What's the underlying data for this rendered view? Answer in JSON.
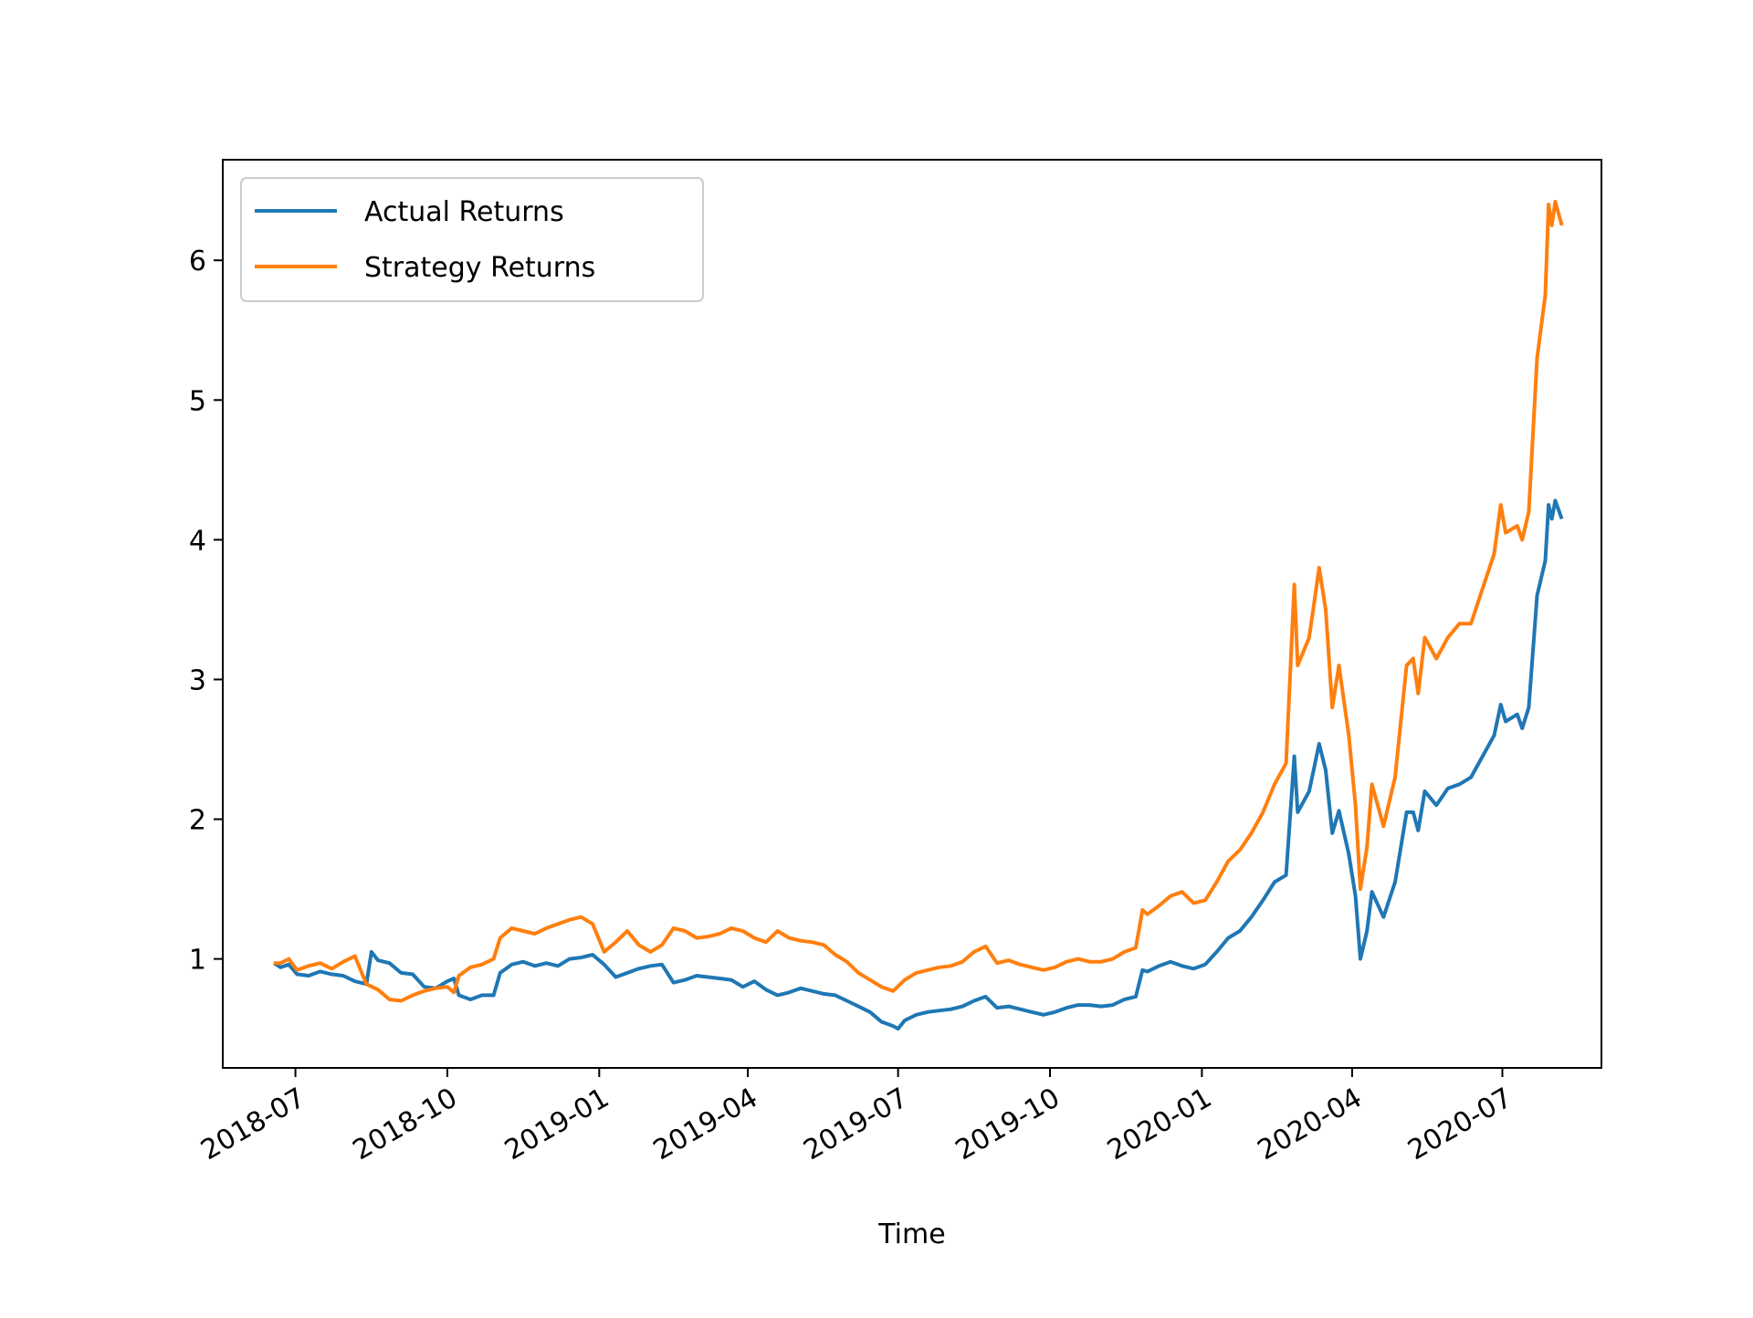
{
  "chart_data": {
    "type": "line",
    "title": "",
    "xlabel": "Time",
    "ylabel": "",
    "x_ticks": [
      "2018-07",
      "2018-10",
      "2019-01",
      "2019-04",
      "2019-07",
      "2019-10",
      "2020-01",
      "2020-04",
      "2020-07"
    ],
    "y_ticks": [
      "1",
      "2",
      "3",
      "4",
      "5",
      "6"
    ],
    "xlim": [
      "2018-05-18",
      "2020-08-30"
    ],
    "ylim": [
      0.22,
      6.72
    ],
    "grid": false,
    "legend_position": "upper-left",
    "series": [
      {
        "name": "Actual Returns",
        "color": "#1f77b4",
        "points": [
          [
            "2018-06-18",
            0.97
          ],
          [
            "2018-06-22",
            0.94
          ],
          [
            "2018-06-27",
            0.96
          ],
          [
            "2018-07-02",
            0.89
          ],
          [
            "2018-07-09",
            0.88
          ],
          [
            "2018-07-16",
            0.91
          ],
          [
            "2018-07-23",
            0.89
          ],
          [
            "2018-07-30",
            0.88
          ],
          [
            "2018-08-06",
            0.84
          ],
          [
            "2018-08-13",
            0.82
          ],
          [
            "2018-08-16",
            1.05
          ],
          [
            "2018-08-20",
            0.99
          ],
          [
            "2018-08-27",
            0.97
          ],
          [
            "2018-09-03",
            0.9
          ],
          [
            "2018-09-10",
            0.89
          ],
          [
            "2018-09-17",
            0.8
          ],
          [
            "2018-09-24",
            0.79
          ],
          [
            "2018-10-01",
            0.84
          ],
          [
            "2018-10-05",
            0.86
          ],
          [
            "2018-10-08",
            0.74
          ],
          [
            "2018-10-15",
            0.71
          ],
          [
            "2018-10-22",
            0.74
          ],
          [
            "2018-10-29",
            0.74
          ],
          [
            "2018-11-02",
            0.9
          ],
          [
            "2018-11-09",
            0.96
          ],
          [
            "2018-11-16",
            0.98
          ],
          [
            "2018-11-23",
            0.95
          ],
          [
            "2018-11-30",
            0.97
          ],
          [
            "2018-12-07",
            0.95
          ],
          [
            "2018-12-14",
            1.0
          ],
          [
            "2018-12-21",
            1.01
          ],
          [
            "2018-12-28",
            1.03
          ],
          [
            "2019-01-04",
            0.96
          ],
          [
            "2019-01-11",
            0.87
          ],
          [
            "2019-01-18",
            0.9
          ],
          [
            "2019-01-25",
            0.93
          ],
          [
            "2019-02-01",
            0.95
          ],
          [
            "2019-02-08",
            0.96
          ],
          [
            "2019-02-15",
            0.83
          ],
          [
            "2019-02-22",
            0.85
          ],
          [
            "2019-03-01",
            0.88
          ],
          [
            "2019-03-08",
            0.87
          ],
          [
            "2019-03-15",
            0.86
          ],
          [
            "2019-03-22",
            0.85
          ],
          [
            "2019-03-29",
            0.8
          ],
          [
            "2019-04-05",
            0.84
          ],
          [
            "2019-04-12",
            0.78
          ],
          [
            "2019-04-19",
            0.74
          ],
          [
            "2019-04-26",
            0.76
          ],
          [
            "2019-05-03",
            0.79
          ],
          [
            "2019-05-10",
            0.77
          ],
          [
            "2019-05-17",
            0.75
          ],
          [
            "2019-05-24",
            0.74
          ],
          [
            "2019-05-31",
            0.7
          ],
          [
            "2019-06-07",
            0.66
          ],
          [
            "2019-06-14",
            0.62
          ],
          [
            "2019-06-21",
            0.55
          ],
          [
            "2019-06-28",
            0.52
          ],
          [
            "2019-07-01",
            0.5
          ],
          [
            "2019-07-05",
            0.56
          ],
          [
            "2019-07-12",
            0.6
          ],
          [
            "2019-07-19",
            0.62
          ],
          [
            "2019-07-26",
            0.63
          ],
          [
            "2019-08-02",
            0.64
          ],
          [
            "2019-08-09",
            0.66
          ],
          [
            "2019-08-16",
            0.7
          ],
          [
            "2019-08-23",
            0.73
          ],
          [
            "2019-08-30",
            0.65
          ],
          [
            "2019-09-06",
            0.66
          ],
          [
            "2019-09-13",
            0.64
          ],
          [
            "2019-09-20",
            0.62
          ],
          [
            "2019-09-27",
            0.6
          ],
          [
            "2019-10-04",
            0.62
          ],
          [
            "2019-10-11",
            0.65
          ],
          [
            "2019-10-18",
            0.67
          ],
          [
            "2019-10-25",
            0.67
          ],
          [
            "2019-11-01",
            0.66
          ],
          [
            "2019-11-08",
            0.67
          ],
          [
            "2019-11-15",
            0.71
          ],
          [
            "2019-11-22",
            0.73
          ],
          [
            "2019-11-26",
            0.92
          ],
          [
            "2019-11-29",
            0.91
          ],
          [
            "2019-12-06",
            0.95
          ],
          [
            "2019-12-13",
            0.98
          ],
          [
            "2019-12-20",
            0.95
          ],
          [
            "2019-12-27",
            0.93
          ],
          [
            "2020-01-03",
            0.96
          ],
          [
            "2020-01-10",
            1.05
          ],
          [
            "2020-01-17",
            1.15
          ],
          [
            "2020-01-24",
            1.2
          ],
          [
            "2020-01-31",
            1.3
          ],
          [
            "2020-02-07",
            1.42
          ],
          [
            "2020-02-14",
            1.55
          ],
          [
            "2020-02-21",
            1.6
          ],
          [
            "2020-02-26",
            2.45
          ],
          [
            "2020-02-28",
            2.05
          ],
          [
            "2020-03-06",
            2.2
          ],
          [
            "2020-03-12",
            2.54
          ],
          [
            "2020-03-16",
            2.35
          ],
          [
            "2020-03-20",
            1.9
          ],
          [
            "2020-03-24",
            2.06
          ],
          [
            "2020-03-30",
            1.75
          ],
          [
            "2020-04-03",
            1.45
          ],
          [
            "2020-04-06",
            1.0
          ],
          [
            "2020-04-10",
            1.2
          ],
          [
            "2020-04-13",
            1.48
          ],
          [
            "2020-04-20",
            1.3
          ],
          [
            "2020-04-27",
            1.55
          ],
          [
            "2020-05-04",
            2.05
          ],
          [
            "2020-05-08",
            2.05
          ],
          [
            "2020-05-11",
            1.92
          ],
          [
            "2020-05-15",
            2.2
          ],
          [
            "2020-05-22",
            2.1
          ],
          [
            "2020-05-29",
            2.22
          ],
          [
            "2020-06-05",
            2.25
          ],
          [
            "2020-06-12",
            2.3
          ],
          [
            "2020-06-19",
            2.45
          ],
          [
            "2020-06-26",
            2.6
          ],
          [
            "2020-06-30",
            2.82
          ],
          [
            "2020-07-03",
            2.7
          ],
          [
            "2020-07-10",
            2.75
          ],
          [
            "2020-07-13",
            2.65
          ],
          [
            "2020-07-17",
            2.8
          ],
          [
            "2020-07-22",
            3.6
          ],
          [
            "2020-07-27",
            3.85
          ],
          [
            "2020-07-29",
            4.25
          ],
          [
            "2020-07-31",
            4.15
          ],
          [
            "2020-08-02",
            4.28
          ],
          [
            "2020-08-06",
            4.15
          ]
        ]
      },
      {
        "name": "Strategy Returns",
        "color": "#ff7f0e",
        "points": [
          [
            "2018-06-18",
            0.97
          ],
          [
            "2018-06-22",
            0.97
          ],
          [
            "2018-06-27",
            1.0
          ],
          [
            "2018-07-02",
            0.92
          ],
          [
            "2018-07-09",
            0.95
          ],
          [
            "2018-07-16",
            0.97
          ],
          [
            "2018-07-23",
            0.93
          ],
          [
            "2018-07-30",
            0.98
          ],
          [
            "2018-08-06",
            1.02
          ],
          [
            "2018-08-13",
            0.82
          ],
          [
            "2018-08-20",
            0.78
          ],
          [
            "2018-08-27",
            0.71
          ],
          [
            "2018-09-03",
            0.7
          ],
          [
            "2018-09-10",
            0.74
          ],
          [
            "2018-09-17",
            0.77
          ],
          [
            "2018-09-24",
            0.79
          ],
          [
            "2018-10-01",
            0.8
          ],
          [
            "2018-10-05",
            0.76
          ],
          [
            "2018-10-08",
            0.88
          ],
          [
            "2018-10-15",
            0.94
          ],
          [
            "2018-10-22",
            0.96
          ],
          [
            "2018-10-29",
            1.0
          ],
          [
            "2018-11-02",
            1.15
          ],
          [
            "2018-11-09",
            1.22
          ],
          [
            "2018-11-16",
            1.2
          ],
          [
            "2018-11-23",
            1.18
          ],
          [
            "2018-11-30",
            1.22
          ],
          [
            "2018-12-07",
            1.25
          ],
          [
            "2018-12-14",
            1.28
          ],
          [
            "2018-12-21",
            1.3
          ],
          [
            "2018-12-28",
            1.25
          ],
          [
            "2019-01-04",
            1.05
          ],
          [
            "2019-01-11",
            1.12
          ],
          [
            "2019-01-18",
            1.2
          ],
          [
            "2019-01-25",
            1.1
          ],
          [
            "2019-02-01",
            1.05
          ],
          [
            "2019-02-08",
            1.1
          ],
          [
            "2019-02-15",
            1.22
          ],
          [
            "2019-02-22",
            1.2
          ],
          [
            "2019-03-01",
            1.15
          ],
          [
            "2019-03-08",
            1.16
          ],
          [
            "2019-03-15",
            1.18
          ],
          [
            "2019-03-22",
            1.22
          ],
          [
            "2019-03-29",
            1.2
          ],
          [
            "2019-04-05",
            1.15
          ],
          [
            "2019-04-12",
            1.12
          ],
          [
            "2019-04-19",
            1.2
          ],
          [
            "2019-04-26",
            1.15
          ],
          [
            "2019-05-03",
            1.13
          ],
          [
            "2019-05-10",
            1.12
          ],
          [
            "2019-05-17",
            1.1
          ],
          [
            "2019-05-24",
            1.03
          ],
          [
            "2019-05-31",
            0.98
          ],
          [
            "2019-06-07",
            0.9
          ],
          [
            "2019-06-14",
            0.85
          ],
          [
            "2019-06-21",
            0.8
          ],
          [
            "2019-06-28",
            0.77
          ],
          [
            "2019-07-05",
            0.85
          ],
          [
            "2019-07-12",
            0.9
          ],
          [
            "2019-07-19",
            0.92
          ],
          [
            "2019-07-26",
            0.94
          ],
          [
            "2019-08-02",
            0.95
          ],
          [
            "2019-08-09",
            0.98
          ],
          [
            "2019-08-16",
            1.05
          ],
          [
            "2019-08-23",
            1.09
          ],
          [
            "2019-08-30",
            0.97
          ],
          [
            "2019-09-06",
            0.99
          ],
          [
            "2019-09-13",
            0.96
          ],
          [
            "2019-09-20",
            0.94
          ],
          [
            "2019-09-27",
            0.92
          ],
          [
            "2019-10-04",
            0.94
          ],
          [
            "2019-10-11",
            0.98
          ],
          [
            "2019-10-18",
            1.0
          ],
          [
            "2019-10-25",
            0.98
          ],
          [
            "2019-11-01",
            0.98
          ],
          [
            "2019-11-08",
            1.0
          ],
          [
            "2019-11-15",
            1.05
          ],
          [
            "2019-11-22",
            1.08
          ],
          [
            "2019-11-26",
            1.35
          ],
          [
            "2019-11-29",
            1.32
          ],
          [
            "2019-12-06",
            1.38
          ],
          [
            "2019-12-13",
            1.45
          ],
          [
            "2019-12-20",
            1.48
          ],
          [
            "2019-12-27",
            1.4
          ],
          [
            "2020-01-03",
            1.42
          ],
          [
            "2020-01-10",
            1.55
          ],
          [
            "2020-01-17",
            1.7
          ],
          [
            "2020-01-24",
            1.78
          ],
          [
            "2020-01-31",
            1.9
          ],
          [
            "2020-02-07",
            2.05
          ],
          [
            "2020-02-14",
            2.25
          ],
          [
            "2020-02-21",
            2.4
          ],
          [
            "2020-02-26",
            3.68
          ],
          [
            "2020-02-28",
            3.1
          ],
          [
            "2020-03-06",
            3.3
          ],
          [
            "2020-03-12",
            3.8
          ],
          [
            "2020-03-16",
            3.5
          ],
          [
            "2020-03-20",
            2.8
          ],
          [
            "2020-03-24",
            3.1
          ],
          [
            "2020-03-30",
            2.6
          ],
          [
            "2020-04-03",
            2.1
          ],
          [
            "2020-04-06",
            1.5
          ],
          [
            "2020-04-10",
            1.8
          ],
          [
            "2020-04-13",
            2.25
          ],
          [
            "2020-04-20",
            1.95
          ],
          [
            "2020-04-27",
            2.3
          ],
          [
            "2020-05-04",
            3.1
          ],
          [
            "2020-05-08",
            3.15
          ],
          [
            "2020-05-11",
            2.9
          ],
          [
            "2020-05-15",
            3.3
          ],
          [
            "2020-05-22",
            3.15
          ],
          [
            "2020-05-29",
            3.3
          ],
          [
            "2020-06-05",
            3.4
          ],
          [
            "2020-06-12",
            3.4
          ],
          [
            "2020-06-19",
            3.65
          ],
          [
            "2020-06-26",
            3.9
          ],
          [
            "2020-06-30",
            4.25
          ],
          [
            "2020-07-03",
            4.05
          ],
          [
            "2020-07-10",
            4.1
          ],
          [
            "2020-07-13",
            4.0
          ],
          [
            "2020-07-17",
            4.2
          ],
          [
            "2020-07-22",
            5.3
          ],
          [
            "2020-07-27",
            5.75
          ],
          [
            "2020-07-29",
            6.4
          ],
          [
            "2020-07-31",
            6.25
          ],
          [
            "2020-08-02",
            6.42
          ],
          [
            "2020-08-06",
            6.25
          ]
        ]
      }
    ]
  }
}
